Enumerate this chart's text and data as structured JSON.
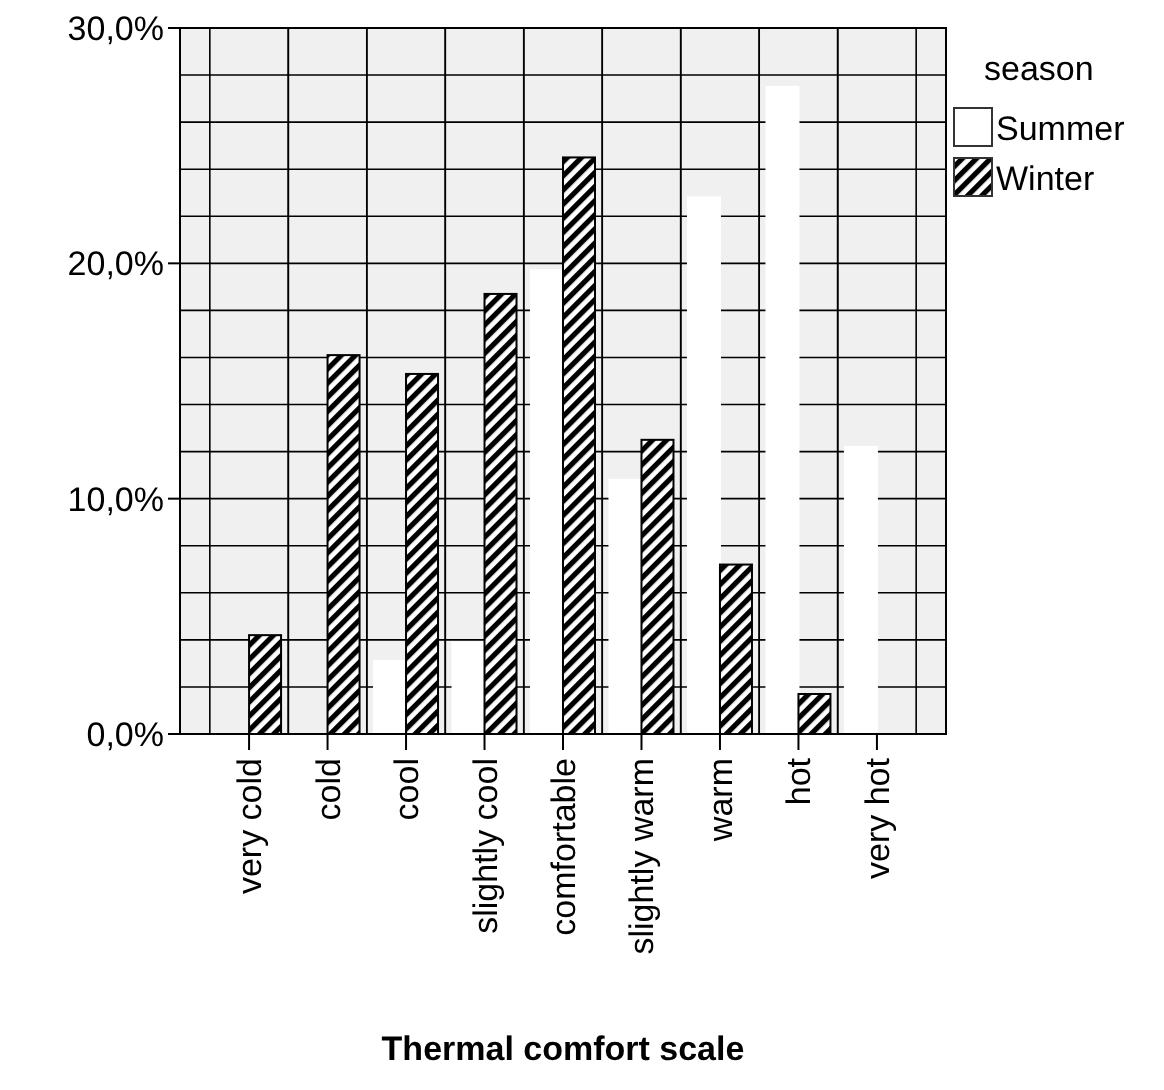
{
  "chart_data": {
    "type": "bar",
    "xlabel": "Thermal comfort scale",
    "legend_title": "season",
    "legend": "top right",
    "categories": [
      "very cold",
      "cold",
      "cool",
      "slightly cool",
      "comfortable",
      "slightly warm",
      "warm",
      "hot",
      "very hot"
    ],
    "series": [
      {
        "name": "Summer",
        "color": "#ffffff",
        "values": [
          0,
          0,
          3.1,
          3.9,
          19.7,
          10.8,
          22.8,
          27.5,
          12.2
        ]
      },
      {
        "name": "Winter",
        "color": "#000000",
        "values": [
          4.2,
          16.1,
          15.3,
          18.7,
          24.5,
          12.5,
          7.2,
          1.7,
          0
        ]
      }
    ],
    "ylim": [
      0,
      30
    ],
    "yticks": [
      {
        "value": 0,
        "label": "0,0%"
      },
      {
        "value": 2,
        "label": null
      },
      {
        "value": 4,
        "label": null
      },
      {
        "value": 6,
        "label": null
      },
      {
        "value": 8,
        "label": null
      },
      {
        "value": 10,
        "label": "10,0%"
      },
      {
        "value": 12,
        "label": null
      },
      {
        "value": 14,
        "label": null
      },
      {
        "value": 16,
        "label": null
      },
      {
        "value": 18,
        "label": null
      },
      {
        "value": 20,
        "label": "20,0%"
      },
      {
        "value": 22,
        "label": null
      },
      {
        "value": 24,
        "label": null
      },
      {
        "value": 26,
        "label": null
      },
      {
        "value": 28,
        "label": null
      },
      {
        "value": 30,
        "label": "30,0%"
      }
    ],
    "grid": true
  }
}
